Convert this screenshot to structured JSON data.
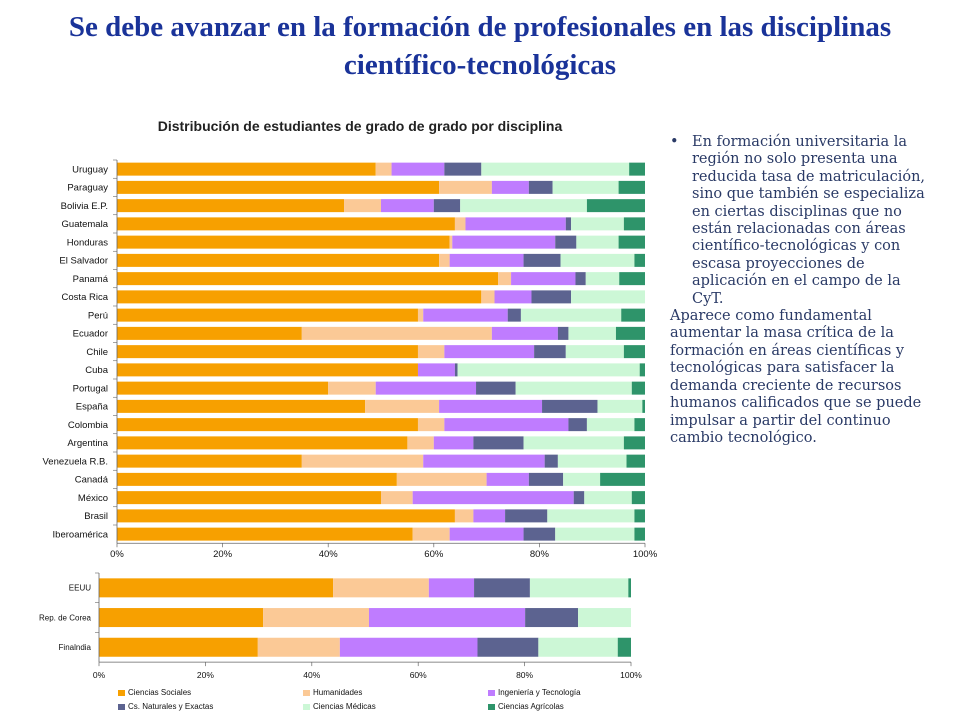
{
  "title": "Se debe avanzar en la formación de profesionales en las disciplinas científico-tecnológicas",
  "side_text": {
    "bullet": "•",
    "paragraph1": "En formación universitaria la región no solo presenta una reducida tasa de matriculación, sino que también se especializa en ciertas disciplinas que no están relacionadas con áreas científico-tecnológicas y con escasa proyecciones de aplicación en el campo de la CyT.",
    "paragraph2": "Aparece como fundamental aumentar la masa crítica de la formación en áreas científicas y tecnológicas para satisfacer la demanda creciente de recursos humanos calificados que se puede impulsar a partir del continuo cambio tecnológico."
  },
  "colors": {
    "title": "#1a3399",
    "series": [
      "#f7a000",
      "#fbc996",
      "#bf7cff",
      "#5c6390",
      "#ccf7d6",
      "#2e946a"
    ]
  },
  "legend": [
    {
      "label": "Ciencias Sociales",
      "color": "#f7a000"
    },
    {
      "label": "Humanidades",
      "color": "#fbc996"
    },
    {
      "label": "Ingeniería y Tecnología",
      "color": "#bf7cff"
    },
    {
      "label": "Cs. Naturales y Exactas",
      "color": "#5c6390"
    },
    {
      "label": "Ciencias Médicas",
      "color": "#ccf7d6"
    },
    {
      "label": "Ciencias Agrícolas",
      "color": "#2e946a"
    }
  ],
  "chart_data": [
    {
      "type": "bar",
      "orientation": "horizontal",
      "stacked": "percent",
      "title": "Distribución de estudiantes de grado de grado por disciplina",
      "xlim": [
        0,
        100
      ],
      "xticks": [
        "0%",
        "20%",
        "40%",
        "60%",
        "80%",
        "100%"
      ],
      "categories": [
        "Uruguay",
        "Paraguay",
        "Bolivia E.P.",
        "Guatemala",
        "Honduras",
        "El Salvador",
        "Panamá",
        "Costa Rica",
        "Perú",
        "Ecuador",
        "Chile",
        "Cuba",
        "Portugal",
        "España",
        "Colombia",
        "Argentina",
        "Venezuela R.B.",
        "Canadá",
        "México",
        "Brasil",
        "Iberoamérica"
      ],
      "series": [
        {
          "name": "Ciencias Sociales",
          "values": [
            49,
            61,
            43,
            64,
            63,
            61,
            74,
            69,
            57,
            35,
            57,
            57,
            40,
            47,
            57,
            55,
            35,
            53,
            50,
            64,
            56
          ]
        },
        {
          "name": "Humanidades",
          "values": [
            3,
            10,
            7,
            2,
            0.5,
            2,
            2.5,
            2.5,
            1,
            36,
            5,
            0,
            9,
            14,
            5,
            5,
            23,
            17,
            6,
            3.5,
            7
          ]
        },
        {
          "name": "Ingeniería y Tecnología",
          "values": [
            10,
            7,
            10,
            19,
            19.5,
            14,
            12.5,
            7,
            16,
            12.5,
            17,
            7,
            19,
            19.5,
            23.5,
            7.5,
            23,
            8,
            30.5,
            6,
            14
          ]
        },
        {
          "name": "Cs. Naturales y Exactas",
          "values": [
            7,
            4.5,
            5,
            1,
            4,
            7,
            2,
            7.5,
            2.5,
            2,
            6,
            0.5,
            7.5,
            10.5,
            3.5,
            9.5,
            2.5,
            6.5,
            2,
            8,
            6
          ]
        },
        {
          "name": "Ciencias Médicas",
          "values": [
            28,
            12.5,
            24,
            10,
            8,
            14,
            6.5,
            14,
            19,
            9,
            11,
            34.5,
            22,
            8.5,
            9,
            19,
            13,
            7,
            9,
            16.5,
            15
          ]
        },
        {
          "name": "Ciencias Agrícolas",
          "values": [
            3,
            5,
            11,
            4,
            5,
            2,
            5,
            0,
            4.5,
            5.5,
            4,
            1,
            2.5,
            0.5,
            2,
            4,
            3.5,
            8.5,
            2.5,
            2,
            2
          ]
        }
      ]
    },
    {
      "type": "bar",
      "orientation": "horizontal",
      "stacked": "percent",
      "title": "",
      "xlim": [
        0,
        100
      ],
      "xticks": [
        "0%",
        "20%",
        "40%",
        "60%",
        "80%",
        "100%"
      ],
      "categories": [
        "EEUU",
        "Rep. de Corea",
        "Finalndia"
      ],
      "series": [
        {
          "name": "Ciencias Sociales",
          "values": [
            44,
            31,
            30
          ]
        },
        {
          "name": "Humanidades",
          "values": [
            18,
            20,
            15.5
          ]
        },
        {
          "name": "Ingeniería y Tecnología",
          "values": [
            8.5,
            29.5,
            26
          ]
        },
        {
          "name": "Cs. Naturales y Exactas",
          "values": [
            10.5,
            10,
            11.5
          ]
        },
        {
          "name": "Ciencias Médicas",
          "values": [
            18.5,
            10,
            15
          ]
        },
        {
          "name": "Ciencias Agrícolas",
          "values": [
            0.5,
            0,
            2.5
          ]
        }
      ]
    }
  ]
}
